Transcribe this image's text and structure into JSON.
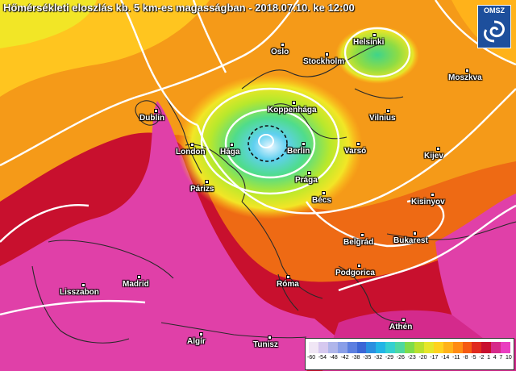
{
  "title": "Hőmérsékleti eloszlás kb. 5 km-es magasságban - 2018.07.10. ke 12:00",
  "logo": {
    "text": "OMSZ",
    "icon": "cyclone-swirl-icon"
  },
  "cities": [
    {
      "name": "Oslo"
    },
    {
      "name": "Stockholm"
    },
    {
      "name": "Helsinki"
    },
    {
      "name": "Moszkva"
    },
    {
      "name": "Koppenhága"
    },
    {
      "name": "Vilnius"
    },
    {
      "name": "Dublin"
    },
    {
      "name": "London"
    },
    {
      "name": "Hága"
    },
    {
      "name": "Berlin"
    },
    {
      "name": "Varsó"
    },
    {
      "name": "Kijev"
    },
    {
      "name": "Párizs"
    },
    {
      "name": "Prága"
    },
    {
      "name": "Bécs"
    },
    {
      "name": "Kisinyov"
    },
    {
      "name": "Belgrád"
    },
    {
      "name": "Bukarest"
    },
    {
      "name": "Podgorica"
    },
    {
      "name": "Madrid"
    },
    {
      "name": "Lisszabon"
    },
    {
      "name": "Róma"
    },
    {
      "name": "Athén"
    },
    {
      "name": "Algír"
    },
    {
      "name": "Tunisz"
    }
  ],
  "legend": {
    "ticks": [
      "-60",
      "-54",
      "-48",
      "-42",
      "-38",
      "-35",
      "-32",
      "-29",
      "-26",
      "-23",
      "-20",
      "-17",
      "-14",
      "-11",
      "-8",
      "-5",
      "-2",
      "1",
      "4",
      "7",
      "10"
    ],
    "colors": [
      "#f0e6f5",
      "#d6c8ef",
      "#b0b6ea",
      "#8a9fe8",
      "#5c7fe0",
      "#3b66d6",
      "#2a8fe0",
      "#22b5e6",
      "#34d0d0",
      "#4ed8a0",
      "#7fdc4a",
      "#b9e02e",
      "#e6e62a",
      "#ffd21f",
      "#ffb21a",
      "#ff8c14",
      "#f55a12",
      "#e02a1e",
      "#c8102e",
      "#d62a8a",
      "#ea3dc0"
    ]
  }
}
